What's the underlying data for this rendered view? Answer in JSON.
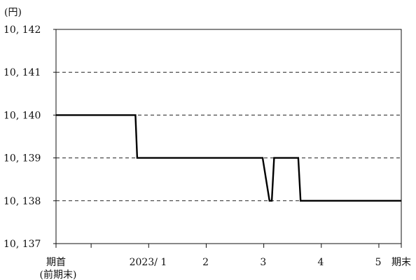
{
  "chart_data": {
    "type": "line",
    "y_unit_label": "(円)",
    "ylim": [
      10137,
      10142
    ],
    "y_ticks": [
      {
        "value": 10142,
        "label": "10, 142"
      },
      {
        "value": 10141,
        "label": "10, 141"
      },
      {
        "value": 10140,
        "label": "10, 140"
      },
      {
        "value": 10139,
        "label": "10, 139"
      },
      {
        "value": 10138,
        "label": "10, 138"
      },
      {
        "value": 10137,
        "label": "10, 137"
      }
    ],
    "x_index_range": [
      0,
      6
    ],
    "x_tick_positions": [
      0,
      0.61,
      1.61,
      2.61,
      3.61,
      4.61,
      5.61,
      6
    ],
    "x_labels": [
      {
        "pos": 0,
        "label": "期首",
        "sub": "(前期末)"
      },
      {
        "pos": 1.6,
        "label": "2023/ 1"
      },
      {
        "pos": 2.6,
        "label": "2"
      },
      {
        "pos": 3.6,
        "label": "3"
      },
      {
        "pos": 4.6,
        "label": "4"
      },
      {
        "pos": 5.6,
        "label": "5"
      },
      {
        "pos": 6,
        "label": "期末"
      }
    ],
    "grid": {
      "horizontal": "dashed",
      "vertical": false
    },
    "series": [
      {
        "points": [
          [
            0,
            10140
          ],
          [
            1.38,
            10140
          ],
          [
            1.41,
            10139
          ],
          [
            3.59,
            10139
          ],
          [
            3.71,
            10138
          ],
          [
            3.75,
            10138
          ],
          [
            3.79,
            10139
          ],
          [
            4.21,
            10139
          ],
          [
            4.25,
            10138
          ],
          [
            6,
            10138
          ]
        ]
      }
    ]
  }
}
